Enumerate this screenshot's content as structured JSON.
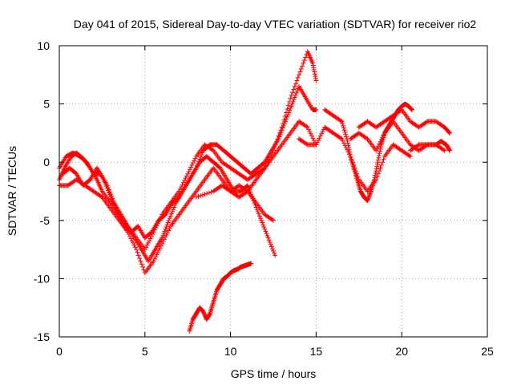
{
  "chart_data": {
    "type": "scatter",
    "title": "Day 041 of 2015, Sidereal Day-to-day VTEC variation (SDTVAR) for receiver rio2",
    "xlabel": "GPS time / hours",
    "ylabel": "SDTVAR / TECUs",
    "xlim": [
      0,
      25
    ],
    "ylim": [
      -15,
      10
    ],
    "x_ticks": [
      0,
      5,
      10,
      15,
      20,
      25
    ],
    "y_ticks": [
      -15,
      -10,
      -5,
      0,
      5,
      10
    ],
    "grid": true,
    "legend": "none",
    "marker": "+",
    "color": "#ff0000",
    "series": [
      {
        "x": [
          0.0,
          0.3,
          0.7,
          1.0,
          1.4,
          1.8,
          2.2,
          2.5,
          3.0,
          3.5,
          4.0,
          4.5,
          5.0,
          5.5,
          6.0,
          6.5,
          7.0,
          7.5,
          8.0,
          8.5,
          9.0,
          9.5,
          10.0,
          10.5,
          11.0,
          11.5,
          12.0,
          12.5,
          13.0,
          13.5,
          14.0,
          14.5,
          14.8,
          15.0
        ],
        "y": [
          -1.5,
          -0.5,
          0.5,
          0.8,
          0.3,
          -0.5,
          -1.5,
          -2.5,
          -3.5,
          -4.5,
          -5.5,
          -6.5,
          -7.5,
          -6.0,
          -4.5,
          -3.5,
          -2.5,
          -1.0,
          0.5,
          1.5,
          1.0,
          0.0,
          -0.5,
          -1.0,
          -1.5,
          -1.0,
          -0.5,
          1.0,
          3.0,
          5.5,
          7.5,
          9.5,
          8.5,
          7.0
        ]
      },
      {
        "x": [
          0.0,
          0.4,
          0.8,
          1.2,
          1.6,
          2.0,
          2.4,
          2.8,
          3.2,
          3.6,
          4.0,
          4.4,
          4.8,
          5.2,
          5.6,
          6.0,
          6.4,
          6.8,
          7.2,
          7.6,
          8.0,
          8.4,
          8.8,
          9.2,
          9.6,
          10.0,
          10.4,
          10.8,
          11.2,
          11.6,
          12.0,
          12.4,
          12.8,
          13.2,
          13.6,
          14.0,
          14.4,
          14.8,
          15.0
        ],
        "y": [
          -0.5,
          0.5,
          0.8,
          0.5,
          0.0,
          -1.0,
          -1.0,
          -2.0,
          -3.5,
          -4.5,
          -5.5,
          -6.5,
          -7.5,
          -8.5,
          -7.5,
          -6.5,
          -5.0,
          -3.5,
          -2.5,
          -1.5,
          -0.5,
          1.0,
          1.5,
          1.5,
          1.0,
          0.5,
          0.0,
          -0.5,
          -1.0,
          -0.5,
          0.0,
          1.0,
          2.0,
          3.5,
          5.0,
          6.5,
          5.5,
          4.5,
          4.5
        ]
      },
      {
        "x": [
          0.0,
          0.5,
          1.0,
          1.5,
          2.0,
          2.5,
          3.0,
          3.5,
          4.0,
          4.5,
          5.0,
          5.5,
          6.0,
          6.5,
          7.0,
          7.5,
          8.0,
          8.5,
          9.0,
          9.5,
          10.0,
          10.5,
          11.0,
          11.5,
          12.0,
          12.5,
          13.0,
          13.5,
          14.0,
          14.5,
          15.0
        ],
        "y": [
          -2.0,
          -2.0,
          -1.5,
          -2.0,
          -2.5,
          -3.0,
          -4.0,
          -5.0,
          -6.0,
          -7.5,
          -9.5,
          -8.5,
          -7.0,
          -5.5,
          -4.5,
          -3.5,
          -2.5,
          -1.5,
          -0.5,
          -1.5,
          -2.5,
          -3.0,
          -2.5,
          -1.5,
          -0.5,
          0.5,
          1.5,
          2.5,
          3.5,
          3.0,
          1.5
        ]
      },
      {
        "x": [
          0.2,
          0.6,
          1.0,
          1.4,
          1.8,
          2.2,
          2.6,
          3.0,
          3.4,
          3.8,
          4.2,
          4.6,
          5.0,
          5.4,
          5.8,
          6.2,
          6.6,
          7.0,
          7.4,
          7.8,
          8.2,
          8.6,
          9.0,
          9.4,
          9.8,
          10.2,
          10.6,
          11.0,
          11.4,
          11.8,
          12.2,
          12.6
        ],
        "y": [
          -1.0,
          -0.5,
          -1.0,
          -2.0,
          -1.5,
          -0.5,
          -1.5,
          -3.0,
          -4.5,
          -5.5,
          -6.0,
          -5.5,
          -6.5,
          -6.0,
          -5.0,
          -4.5,
          -3.5,
          -3.0,
          -2.0,
          -1.0,
          0.0,
          0.5,
          0.0,
          -0.5,
          -1.5,
          -2.5,
          -2.5,
          -2.0,
          -3.5,
          -5.0,
          -6.5,
          -8.0
        ]
      },
      {
        "x": [
          8.0,
          9.0,
          9.5,
          10.0,
          10.5,
          11.0,
          11.5,
          12.0,
          12.5
        ],
        "y": [
          -3.0,
          -2.5,
          -2.0,
          -2.5,
          -2.0,
          -2.5,
          -3.5,
          -4.5,
          -5.0
        ]
      },
      {
        "x": [
          7.6,
          7.8,
          8.0,
          8.2,
          8.4,
          8.6,
          8.8,
          9.0,
          9.2,
          9.4,
          9.6,
          9.8,
          10.0,
          10.2,
          10.4,
          10.6,
          10.8,
          11.0,
          11.2
        ],
        "y": [
          -14.5,
          -13.5,
          -13.0,
          -12.5,
          -12.8,
          -13.5,
          -13.0,
          -12.0,
          -11.0,
          -10.5,
          -10.0,
          -9.8,
          -9.5,
          -9.3,
          -9.2,
          -9.0,
          -8.9,
          -8.8,
          -8.7
        ]
      },
      {
        "x": [
          14.0,
          14.5,
          15.0,
          15.5,
          16.0,
          16.5,
          17.0,
          17.5,
          18.0,
          18.5,
          19.0,
          19.5,
          20.0,
          20.5
        ],
        "y": [
          2.0,
          1.5,
          1.5,
          3.0,
          2.5,
          2.0,
          0.5,
          -1.5,
          -2.5,
          -1.5,
          0.5,
          1.5,
          1.0,
          0.5
        ]
      },
      {
        "x": [
          15.5,
          16.0,
          16.5,
          16.8,
          17.0,
          17.2,
          17.4,
          17.6,
          17.8,
          18.0,
          18.2,
          18.4,
          18.6,
          18.8,
          19.0,
          19.2,
          19.4,
          19.6,
          19.8,
          20.0,
          20.2,
          20.4,
          20.6
        ],
        "y": [
          4.5,
          4.0,
          3.5,
          2.0,
          0.5,
          -0.5,
          -1.5,
          -2.5,
          -3.0,
          -3.3,
          -2.5,
          -1.5,
          0.0,
          1.5,
          2.5,
          3.0,
          3.5,
          4.0,
          4.5,
          4.8,
          5.0,
          4.8,
          4.5
        ]
      },
      {
        "x": [
          17.0,
          17.5,
          18.0,
          18.5,
          19.0,
          19.5,
          20.0,
          20.5,
          21.0,
          21.5,
          22.0,
          22.5
        ],
        "y": [
          2.0,
          2.5,
          2.0,
          1.0,
          2.5,
          3.5,
          2.5,
          1.5,
          1.0,
          1.5,
          1.5,
          1.0
        ]
      },
      {
        "x": [
          17.5,
          18.0,
          18.5,
          19.0,
          19.5,
          20.0,
          20.5,
          21.0,
          21.5,
          22.0,
          22.5,
          22.8
        ],
        "y": [
          3.0,
          3.5,
          3.0,
          3.5,
          4.0,
          4.5,
          3.5,
          3.0,
          3.5,
          3.5,
          3.0,
          2.5
        ]
      },
      {
        "x": [
          20.5,
          21.0,
          21.5,
          22.0,
          22.3,
          22.6,
          22.8
        ],
        "y": [
          1.0,
          1.5,
          1.5,
          1.5,
          1.8,
          1.5,
          1.0
        ]
      }
    ]
  }
}
